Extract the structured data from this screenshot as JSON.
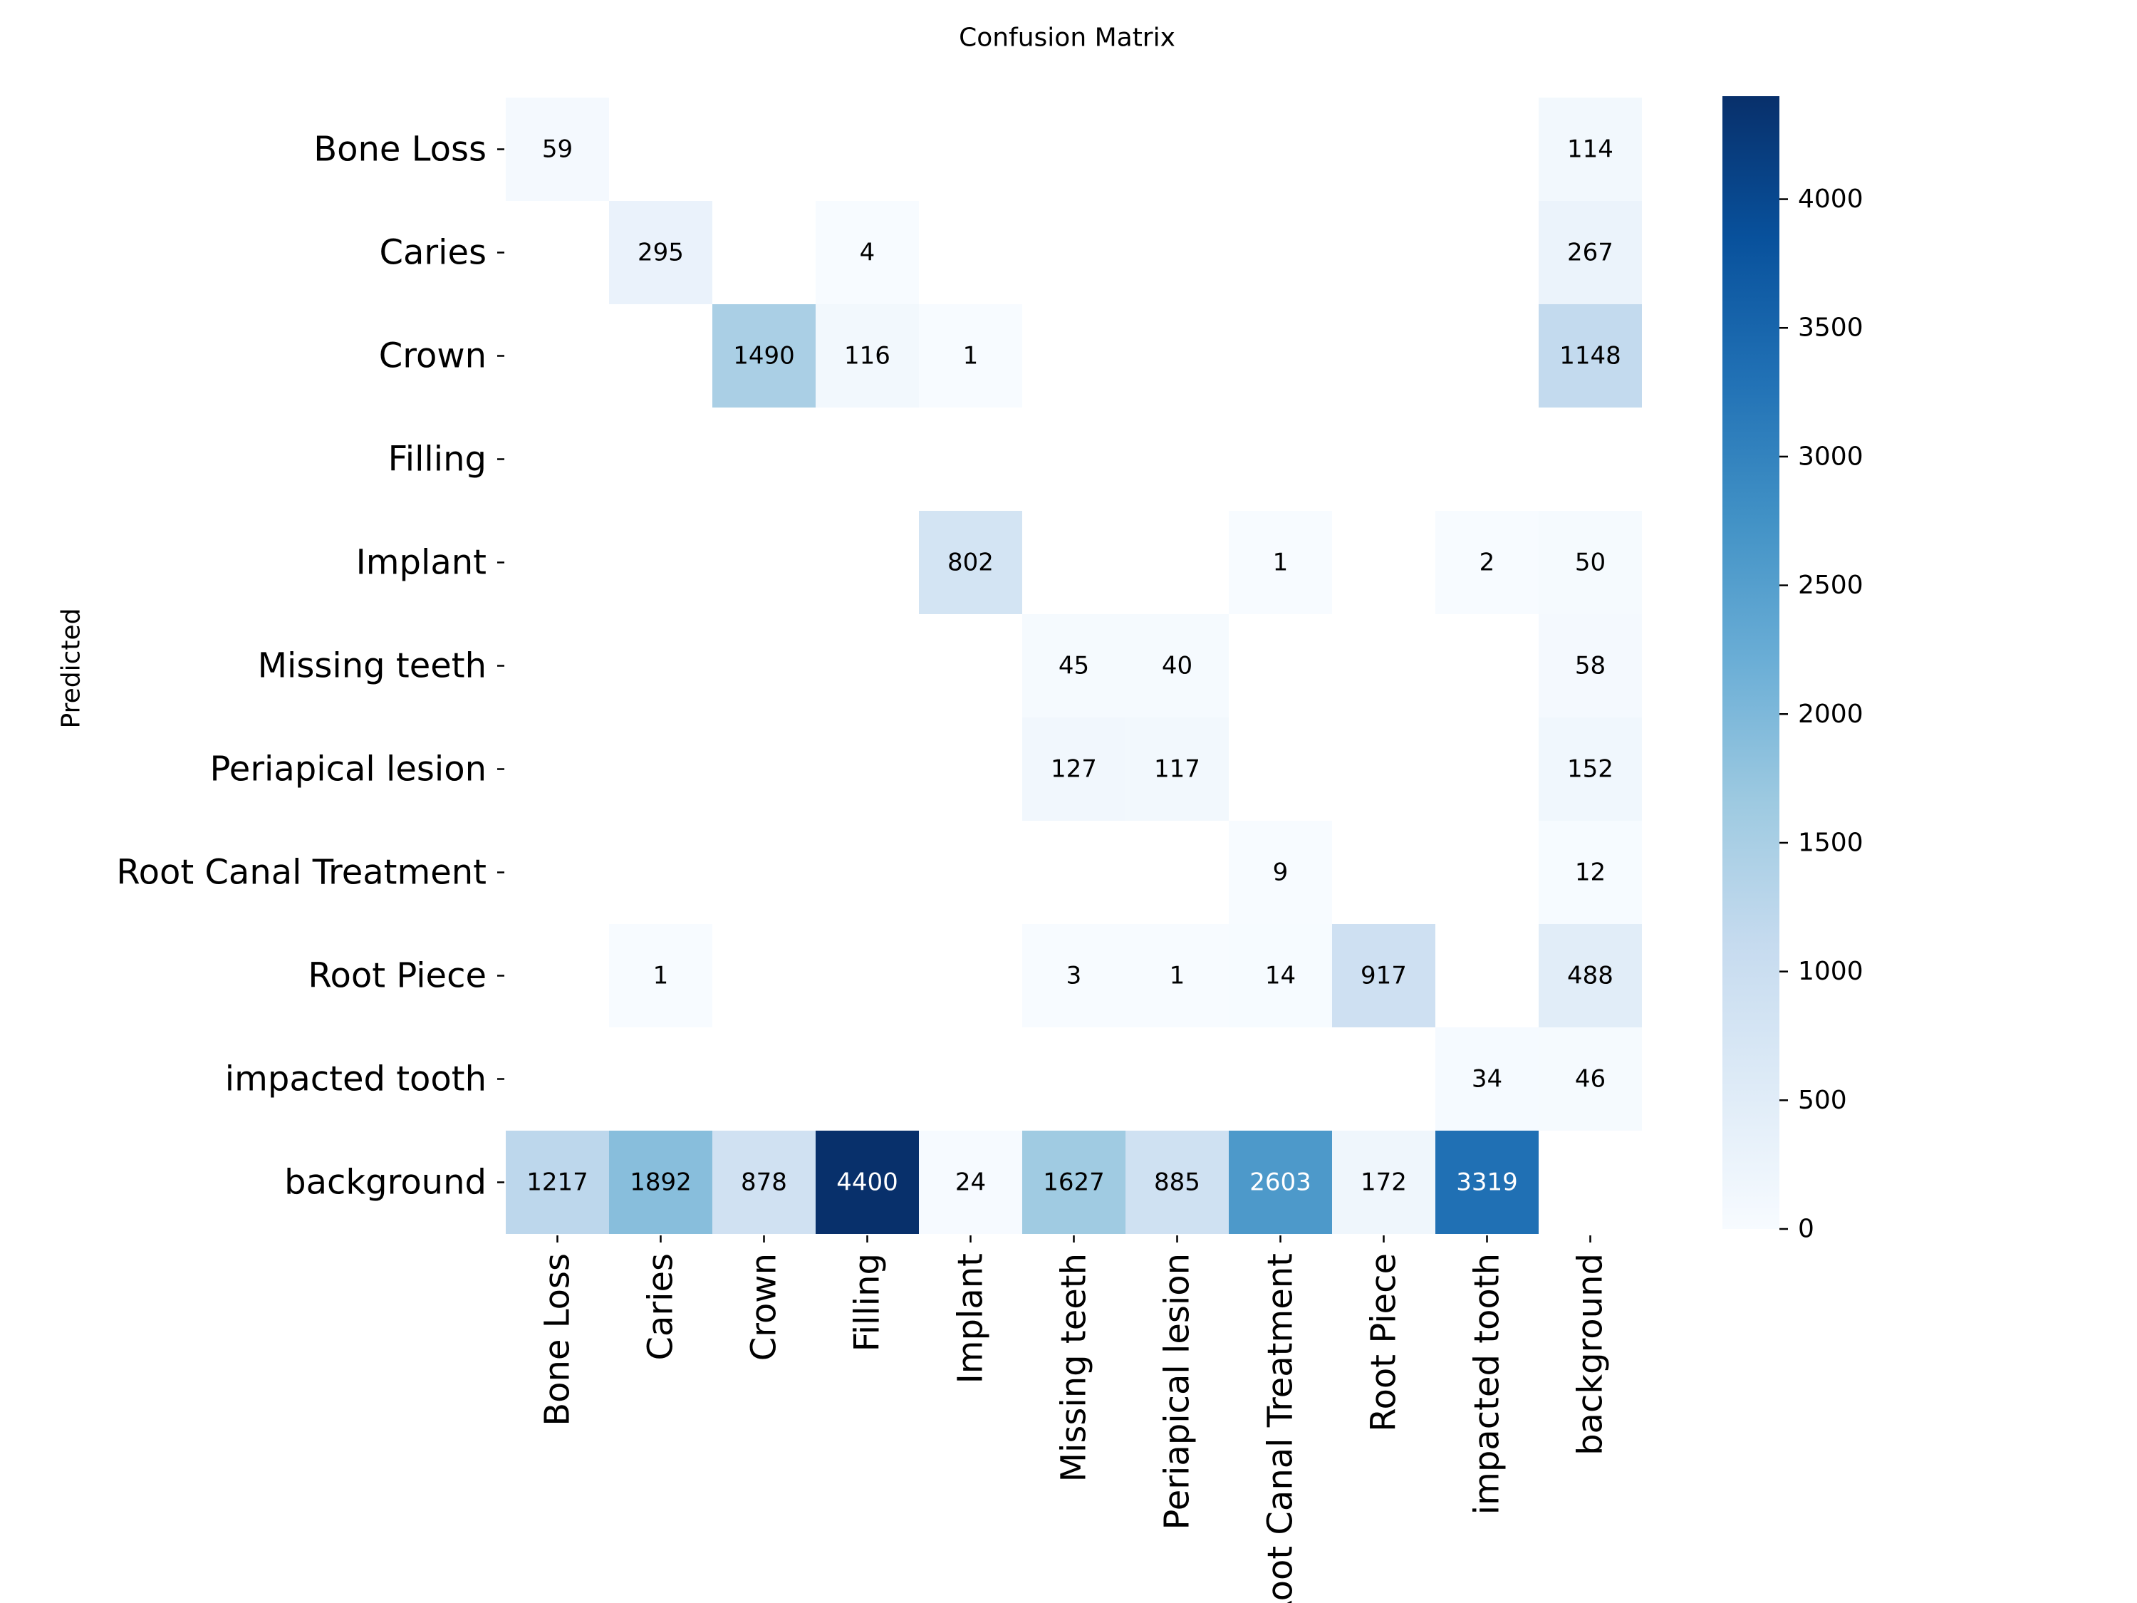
{
  "chart_data": {
    "type": "heatmap",
    "title": "Confusion Matrix",
    "ylabel": "Predicted",
    "xlabel": "",
    "rows": [
      "Bone Loss",
      "Caries",
      "Crown",
      "Filling",
      "Implant",
      "Missing teeth",
      "Periapical lesion",
      "Root Canal Treatment",
      "Root Piece",
      "impacted tooth",
      "background"
    ],
    "columns": [
      "Bone Loss",
      "Caries",
      "Crown",
      "Filling",
      "Implant",
      "Missing teeth",
      "Periapical lesion",
      "Root Canal Treatment",
      "Root Piece",
      "impacted tooth",
      "background"
    ],
    "values": [
      [
        59,
        null,
        null,
        null,
        null,
        null,
        null,
        null,
        null,
        null,
        114
      ],
      [
        null,
        295,
        null,
        4,
        null,
        null,
        null,
        null,
        null,
        null,
        267
      ],
      [
        null,
        null,
        1490,
        116,
        1,
        null,
        null,
        null,
        null,
        null,
        1148
      ],
      [
        null,
        null,
        null,
        null,
        null,
        null,
        null,
        null,
        null,
        null,
        null
      ],
      [
        null,
        null,
        null,
        null,
        802,
        null,
        null,
        1,
        null,
        2,
        50
      ],
      [
        null,
        null,
        null,
        null,
        null,
        45,
        40,
        null,
        null,
        null,
        58
      ],
      [
        null,
        null,
        null,
        null,
        null,
        127,
        117,
        null,
        null,
        null,
        152
      ],
      [
        null,
        null,
        null,
        null,
        null,
        null,
        null,
        9,
        null,
        null,
        12
      ],
      [
        null,
        1,
        null,
        null,
        null,
        3,
        1,
        14,
        917,
        null,
        488
      ],
      [
        null,
        null,
        null,
        null,
        null,
        null,
        null,
        null,
        null,
        34,
        46
      ],
      [
        1217,
        1892,
        878,
        4400,
        24,
        1627,
        885,
        2603,
        172,
        3319,
        null
      ]
    ],
    "colorbar": {
      "range": [
        0,
        4400
      ],
      "ticks": [
        0,
        500,
        1000,
        1500,
        2000,
        2500,
        3000,
        3500,
        4000
      ],
      "colormap": "Blues",
      "low_color": "#f7fbff",
      "high_color": "#08306b"
    }
  }
}
